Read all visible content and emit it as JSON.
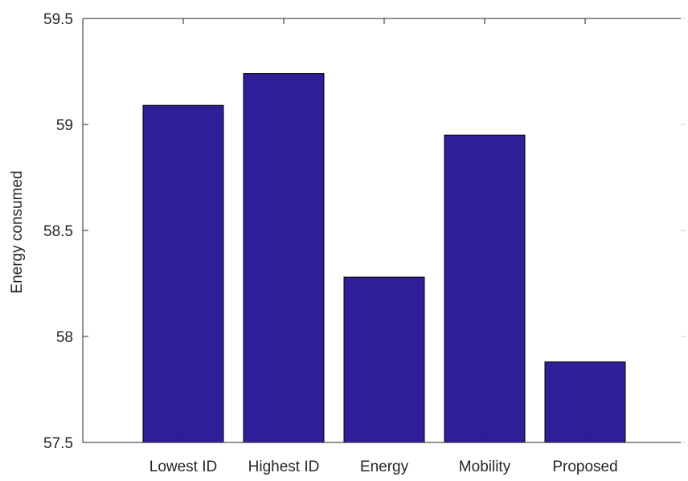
{
  "chart_data": {
    "type": "bar",
    "categories": [
      "Lowest ID",
      "Highest ID",
      "Energy",
      "Mobility",
      "Proposed"
    ],
    "values": [
      59.09,
      59.24,
      58.28,
      58.95,
      57.88
    ],
    "title": "",
    "xlabel": "",
    "ylabel": "Energy consumed",
    "ylim": [
      57.5,
      59.5
    ],
    "yticks": [
      57.5,
      58,
      58.5,
      59,
      59.5
    ],
    "ytick_labels": [
      "57.5",
      "58",
      "58.5",
      "59",
      "59.5"
    ],
    "grid": false,
    "legend": "none",
    "bar_color": "#2e1f99",
    "bar_edge_color": "#000000"
  }
}
